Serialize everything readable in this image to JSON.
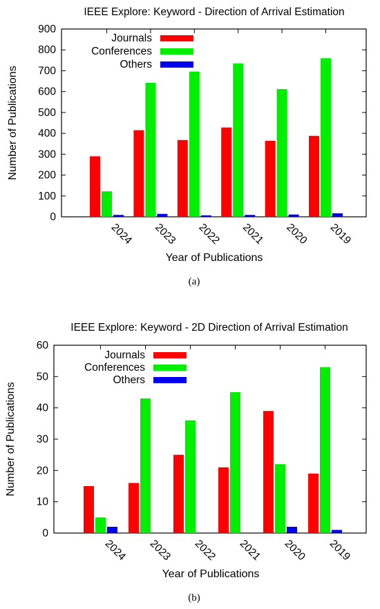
{
  "chart_data": [
    {
      "type": "bar",
      "title": "IEEE Explore: Keyword - Direction of Arrival Estimation",
      "xlabel": "Year of Publications",
      "ylabel": "Number of Publications",
      "categories": [
        "2024",
        "2023",
        "2022",
        "2021",
        "2020",
        "2019"
      ],
      "series": [
        {
          "name": "Journals",
          "color": "#ff0000",
          "values": [
            290,
            415,
            368,
            428,
            364,
            388
          ]
        },
        {
          "name": "Conferences",
          "color": "#00ee00",
          "values": [
            122,
            642,
            696,
            735,
            612,
            760
          ]
        },
        {
          "name": "Others",
          "color": "#0000ee",
          "values": [
            9,
            14,
            7,
            9,
            11,
            17
          ]
        }
      ],
      "ylim": [
        0,
        900
      ],
      "yticks": [
        0,
        100,
        200,
        300,
        400,
        500,
        600,
        700,
        800,
        900
      ],
      "legend": "top-left",
      "grid": false,
      "sublabel": "(a)"
    },
    {
      "type": "bar",
      "title": "IEEE Explore: Keyword - 2D Direction of Arrival Estimation",
      "xlabel": "Year of Publications",
      "ylabel": "Number of Publications",
      "categories": [
        "2024",
        "2023",
        "2022",
        "2021",
        "2020",
        "2019"
      ],
      "series": [
        {
          "name": "Journals",
          "color": "#ff0000",
          "values": [
            15,
            16,
            25,
            21,
            39,
            19
          ]
        },
        {
          "name": "Conferences",
          "color": "#00ee00",
          "values": [
            5,
            43,
            36,
            45,
            22,
            53
          ]
        },
        {
          "name": "Others",
          "color": "#0000ee",
          "values": [
            2,
            0,
            0,
            0,
            2,
            1
          ]
        }
      ],
      "ylim": [
        0,
        60
      ],
      "yticks": [
        0,
        10,
        20,
        30,
        40,
        50,
        60
      ],
      "legend": "top-left",
      "grid": false,
      "sublabel": "(b)"
    }
  ]
}
